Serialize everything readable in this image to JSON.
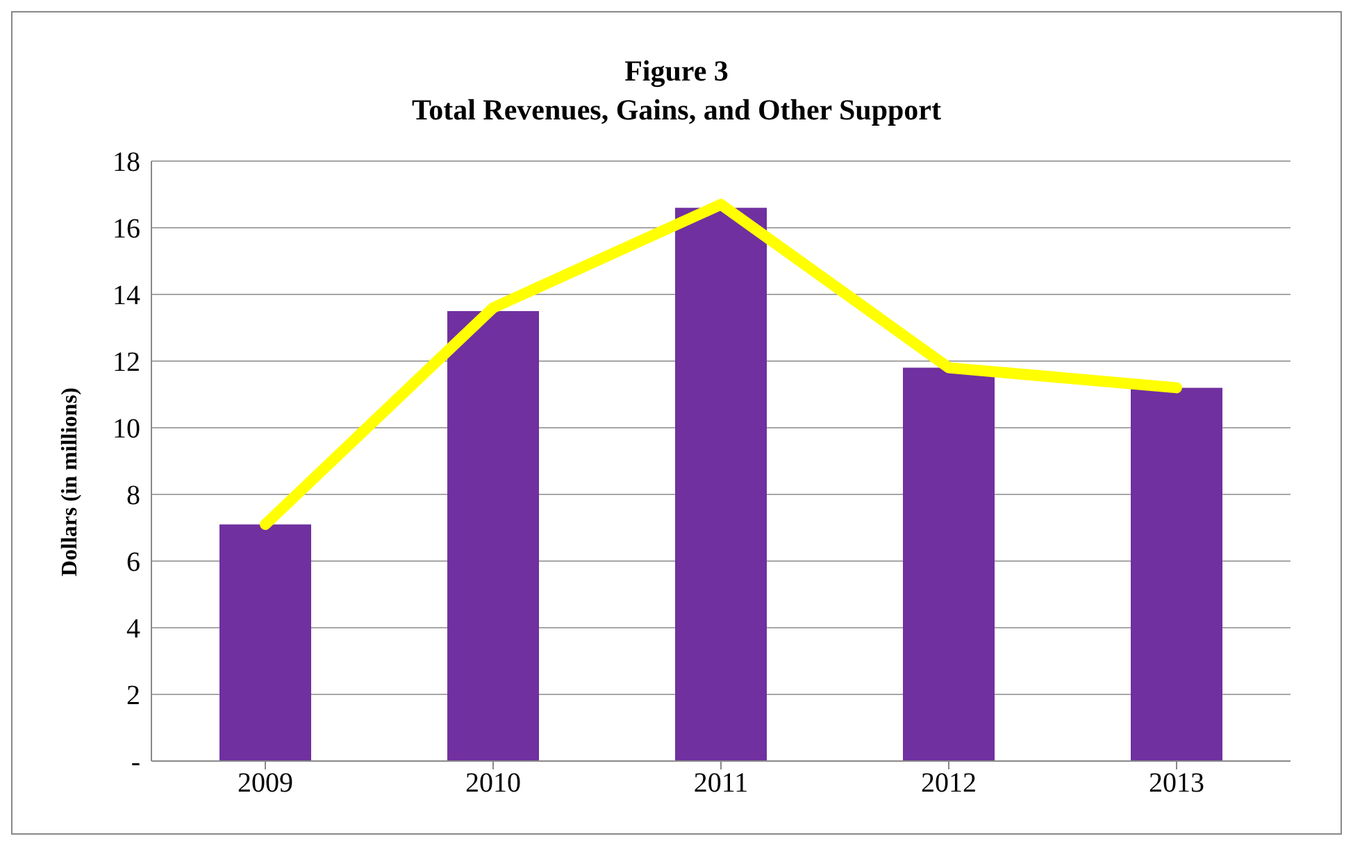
{
  "chart_data": {
    "type": "bar",
    "title": "Figure 3",
    "subtitle": "Total Revenues, Gains, and Other Support",
    "ylabel": "Dollars (in millions)",
    "categories": [
      "2009",
      "2010",
      "2011",
      "2012",
      "2013"
    ],
    "series": [
      {
        "color": "#7030a0",
        "values": [
          7.1,
          13.5,
          16.6,
          11.8,
          11.2
        ]
      },
      {
        "type": "line",
        "color": "#ffff00",
        "values": [
          7.1,
          13.6,
          16.7,
          11.8,
          11.2
        ]
      }
    ],
    "ylim": [
      0,
      18
    ],
    "yticks": [
      {
        "value": 0,
        "label": "-"
      },
      2,
      4,
      6,
      8,
      10,
      12,
      14,
      16,
      18
    ],
    "grid": "y",
    "legend": false,
    "marker": "none"
  }
}
